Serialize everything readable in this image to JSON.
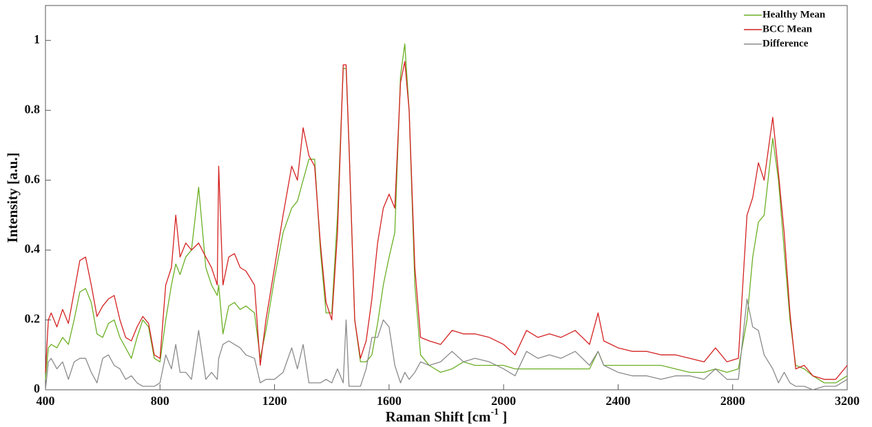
{
  "chart_data": {
    "type": "line",
    "xlabel": [
      "Raman Shift [cm",
      "-1",
      " ]"
    ],
    "ylabel": "Intensity [a.u.]",
    "x": [
      400,
      410,
      420,
      440,
      460,
      480,
      500,
      520,
      540,
      560,
      580,
      600,
      620,
      640,
      660,
      680,
      700,
      720,
      740,
      760,
      780,
      800,
      820,
      840,
      855,
      870,
      890,
      910,
      935,
      960,
      980,
      1000,
      1005,
      1020,
      1040,
      1060,
      1080,
      1100,
      1130,
      1150,
      1170,
      1200,
      1230,
      1260,
      1280,
      1300,
      1320,
      1340,
      1360,
      1380,
      1400,
      1420,
      1440,
      1450,
      1460,
      1480,
      1500,
      1520,
      1540,
      1560,
      1580,
      1600,
      1620,
      1640,
      1655,
      1670,
      1690,
      1710,
      1740,
      1780,
      1820,
      1860,
      1900,
      1950,
      2000,
      2040,
      2080,
      2120,
      2160,
      2200,
      2250,
      2300,
      2330,
      2350,
      2400,
      2450,
      2500,
      2550,
      2600,
      2650,
      2700,
      2740,
      2780,
      2820,
      2850,
      2870,
      2890,
      2910,
      2940,
      2960,
      2980,
      3000,
      3020,
      3050,
      3080,
      3120,
      3160,
      3200
    ],
    "series": [
      {
        "name": "Healthy Mean",
        "color": "#6aaf23",
        "values": [
          0.03,
          0.12,
          0.13,
          0.12,
          0.15,
          0.13,
          0.2,
          0.28,
          0.29,
          0.25,
          0.16,
          0.15,
          0.19,
          0.2,
          0.15,
          0.12,
          0.09,
          0.15,
          0.2,
          0.18,
          0.09,
          0.08,
          0.2,
          0.3,
          0.36,
          0.33,
          0.38,
          0.4,
          0.58,
          0.35,
          0.3,
          0.27,
          0.3,
          0.16,
          0.24,
          0.25,
          0.23,
          0.24,
          0.22,
          0.09,
          0.17,
          0.32,
          0.45,
          0.52,
          0.54,
          0.6,
          0.66,
          0.66,
          0.4,
          0.22,
          0.22,
          0.5,
          0.92,
          0.92,
          0.7,
          0.2,
          0.08,
          0.08,
          0.1,
          0.19,
          0.3,
          0.38,
          0.45,
          0.9,
          0.99,
          0.8,
          0.3,
          0.1,
          0.07,
          0.05,
          0.06,
          0.08,
          0.07,
          0.07,
          0.07,
          0.06,
          0.06,
          0.06,
          0.06,
          0.06,
          0.06,
          0.06,
          0.11,
          0.07,
          0.07,
          0.07,
          0.07,
          0.07,
          0.06,
          0.05,
          0.05,
          0.06,
          0.05,
          0.06,
          0.2,
          0.38,
          0.48,
          0.5,
          0.72,
          0.6,
          0.4,
          0.2,
          0.07,
          0.06,
          0.04,
          0.02,
          0.02,
          0.04
        ]
      },
      {
        "name": "BCC Mean",
        "color": "#d42020",
        "values": [
          0.05,
          0.2,
          0.22,
          0.18,
          0.23,
          0.19,
          0.28,
          0.37,
          0.38,
          0.3,
          0.21,
          0.24,
          0.26,
          0.27,
          0.2,
          0.15,
          0.14,
          0.18,
          0.21,
          0.19,
          0.1,
          0.09,
          0.3,
          0.35,
          0.5,
          0.38,
          0.42,
          0.4,
          0.42,
          0.38,
          0.35,
          0.3,
          0.64,
          0.3,
          0.38,
          0.39,
          0.35,
          0.34,
          0.3,
          0.07,
          0.2,
          0.35,
          0.5,
          0.64,
          0.6,
          0.75,
          0.67,
          0.64,
          0.42,
          0.25,
          0.2,
          0.45,
          0.93,
          0.93,
          0.7,
          0.2,
          0.09,
          0.14,
          0.26,
          0.42,
          0.52,
          0.56,
          0.52,
          0.88,
          0.94,
          0.8,
          0.35,
          0.15,
          0.14,
          0.13,
          0.17,
          0.16,
          0.16,
          0.15,
          0.13,
          0.1,
          0.17,
          0.15,
          0.16,
          0.15,
          0.17,
          0.13,
          0.22,
          0.14,
          0.12,
          0.11,
          0.11,
          0.1,
          0.1,
          0.09,
          0.08,
          0.12,
          0.08,
          0.09,
          0.5,
          0.55,
          0.65,
          0.6,
          0.78,
          0.62,
          0.45,
          0.22,
          0.06,
          0.07,
          0.04,
          0.03,
          0.03,
          0.07
        ]
      },
      {
        "name": "Difference",
        "color": "#8a8a8a",
        "values": [
          0,
          0.08,
          0.09,
          0.06,
          0.08,
          0.03,
          0.08,
          0.09,
          0.09,
          0.05,
          0.02,
          0.09,
          0.1,
          0.07,
          0.06,
          0.03,
          0.04,
          0.02,
          0.01,
          0.01,
          0.01,
          0.02,
          0.1,
          0.06,
          0.13,
          0.05,
          0.05,
          0.03,
          0.17,
          0.03,
          0.05,
          0.03,
          0.09,
          0.13,
          0.14,
          0.13,
          0.12,
          0.1,
          0.09,
          0.02,
          0.03,
          0.03,
          0.05,
          0.12,
          0.06,
          0.13,
          0.02,
          0.02,
          0.02,
          0.03,
          0.02,
          0.06,
          0.02,
          0.2,
          0.01,
          0.01,
          0.01,
          0.06,
          0.15,
          0.15,
          0.2,
          0.18,
          0.07,
          0.02,
          0.05,
          0.03,
          0.05,
          0.08,
          0.07,
          0.08,
          0.11,
          0.08,
          0.09,
          0.08,
          0.06,
          0.04,
          0.11,
          0.09,
          0.1,
          0.09,
          0.11,
          0.07,
          0.11,
          0.07,
          0.05,
          0.04,
          0.04,
          0.03,
          0.04,
          0.04,
          0.03,
          0.06,
          0.03,
          0.03,
          0.26,
          0.18,
          0.17,
          0.1,
          0.06,
          0.02,
          0.05,
          0.02,
          0.01,
          0.01,
          0,
          0.01,
          0.01,
          0.03
        ]
      }
    ],
    "xlim": [
      400,
      3200
    ],
    "xticks": [
      400,
      800,
      1200,
      1600,
      2000,
      2400,
      2800,
      3200
    ],
    "ylim": [
      0,
      1.1
    ],
    "yticks": [
      0,
      0.2,
      0.4,
      0.6,
      0.8,
      1
    ],
    "grid": false,
    "legend": "top-right"
  }
}
